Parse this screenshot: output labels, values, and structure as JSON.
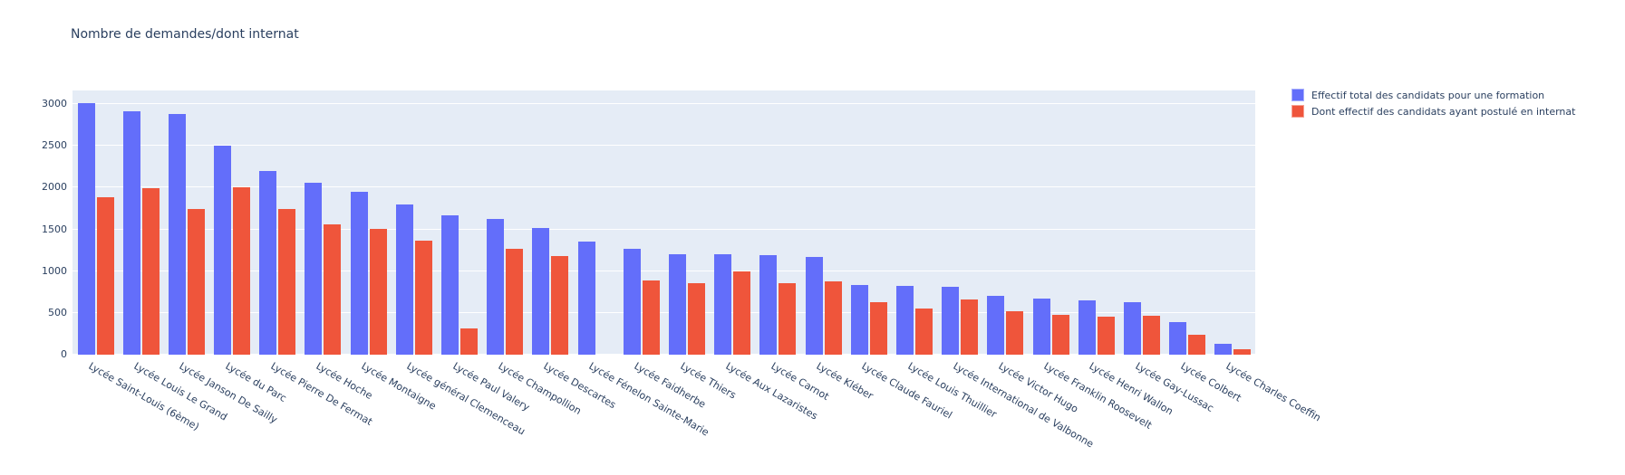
{
  "title": "Nombre de demandes/dont internat",
  "colors": {
    "bar_total": "#636EFA",
    "bar_internat": "#EF553B",
    "plot_background": "#E5ECF6",
    "grid": "#FFFFFF",
    "text": "#2A3F5F"
  },
  "y_axis": {
    "ticks": [
      0,
      500,
      1000,
      1500,
      2000,
      2500,
      3000
    ],
    "max": 3165
  },
  "legend": {
    "items": [
      {
        "label": "Effectif total des candidats pour une formation",
        "color": "#636EFA"
      },
      {
        "label": "Dont effectif des candidats ayant postulé en internat",
        "color": "#EF553B"
      }
    ]
  },
  "chart_data": {
    "type": "bar",
    "title": "Nombre de demandes/dont internat",
    "xlabel": "",
    "ylabel": "",
    "ylim": [
      0,
      3165
    ],
    "grid": true,
    "legend_position": "top-right",
    "tick_angle": 30,
    "categories": [
      "Lycée Saint-Louis (6ème)",
      "Lycée Louis Le Grand",
      "Lycée Janson De Sailly",
      "Lycée du Parc",
      "Lycée Pierre De Fermat",
      "Lycée Hoche",
      "Lycée Montaigne",
      "Lycée général Clemenceau",
      "Lycée Paul Valery",
      "Lycée Champollion",
      "Lycée Descartes",
      "Lycée Fénelon Sainte-Marie",
      "Lycée Faidherbe",
      "Lycée Thiers",
      "Lycée Aux Lazaristes",
      "Lycée Carnot",
      "Lycée Kléber",
      "Lycée Claude Fauriel",
      "Lycée Louis Thuillier",
      "Lycée International de Valbonne",
      "Lycée Victor Hugo",
      "Lycée Franklin Roosevelt",
      "Lycée Henri Wallon",
      "Lycée Gay-Lussac",
      "Lycée Colbert",
      "Lycée Charles Coeffin"
    ],
    "series": [
      {
        "name": "Effectif total des candidats pour une formation",
        "color": "#636EFA",
        "values": [
          3010,
          2920,
          2880,
          2500,
          2200,
          2060,
          1950,
          1800,
          1670,
          1630,
          1520,
          1350,
          1270,
          1200,
          1200,
          1190,
          1170,
          840,
          820,
          810,
          710,
          670,
          650,
          630,
          390,
          130
        ]
      },
      {
        "name": "Dont effectif des candidats ayant postulé en internat",
        "color": "#EF553B",
        "values": [
          1890,
          1990,
          1740,
          2010,
          1750,
          1560,
          1510,
          1370,
          310,
          1270,
          1180,
          0,
          890,
          860,
          1000,
          860,
          880,
          630,
          550,
          660,
          520,
          480,
          460,
          470,
          240,
          70
        ]
      }
    ]
  }
}
